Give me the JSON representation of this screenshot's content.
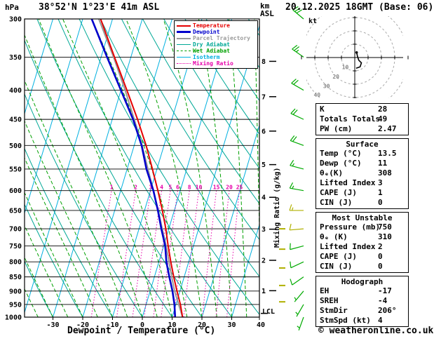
{
  "header": {
    "station": "38°52'N 1°23'E 41m ASL",
    "datetime": "20.12.2025 18GMT (Base: 06)"
  },
  "labels": {
    "hpa": "hPa",
    "km": "km",
    "asl": "ASL",
    "kt": "kt",
    "lcl": "LCL",
    "xlabel": "Dewpoint / Temperature (°C)",
    "mixing_axis": "Mixing Ratio (g/kg)"
  },
  "footer": {
    "copyright": "© weatheronline.co.uk"
  },
  "colors": {
    "wind_barb": "#00aa00",
    "aux_marker": "#b0b000",
    "grid": "#000000",
    "hodograph_ring": "#aaaaaa",
    "hodograph_label": "#888888",
    "hodograph_trace": "#000000"
  },
  "legend": [
    {
      "label": "Temperature",
      "color": "#e60000",
      "style": "solid",
      "width": 2
    },
    {
      "label": "Dewpoint",
      "color": "#0000cc",
      "style": "solid",
      "width": 3
    },
    {
      "label": "Parcel Trajectory",
      "color": "#999999",
      "style": "solid",
      "width": 2
    },
    {
      "label": "Dry Adiabat",
      "color": "#00a896",
      "style": "solid",
      "width": 1
    },
    {
      "label": "Wet Adiabat",
      "color": "#00a000",
      "style": "dashed",
      "width": 1
    },
    {
      "label": "Isotherm",
      "color": "#00b0e0",
      "style": "solid",
      "width": 1
    },
    {
      "label": "Mixing Ratio",
      "color": "#e600aa",
      "style": "dotted",
      "width": 1
    }
  ],
  "axes": {
    "pressure_ticks": [
      300,
      350,
      400,
      450,
      500,
      550,
      600,
      650,
      700,
      750,
      800,
      850,
      900,
      950,
      1000
    ],
    "temp_ticks": [
      -30,
      -20,
      -10,
      0,
      10,
      20,
      30,
      40
    ],
    "km_ticks": [
      1,
      2,
      3,
      4,
      5,
      6,
      7,
      8
    ],
    "mixing_ratio_labels": [
      1,
      2,
      3,
      4,
      5,
      6,
      8,
      10,
      15,
      20,
      25
    ],
    "hodograph_rings": [
      10,
      20,
      30,
      40
    ]
  },
  "chart_data": {
    "type": "line",
    "title": "Skew-T log-P sounding, 38°52'N 1°23'E 41m ASL, 20.12.2025 18GMT (Base: 06)",
    "xlabel": "Dewpoint / Temperature (°C)",
    "ylabel": "hPa",
    "ylim": [
      1000,
      300
    ],
    "x_pressure_hpa": [
      1000,
      950,
      900,
      850,
      800,
      750,
      700,
      650,
      600,
      550,
      500,
      450,
      400,
      350,
      300
    ],
    "series": [
      {
        "name": "Temperature",
        "color": "#e60000",
        "values": [
          13.5,
          11.5,
          9,
          6.5,
          4,
          1.5,
          -1,
          -4,
          -7.5,
          -11.5,
          -16,
          -21.5,
          -28,
          -35.5,
          -44
        ]
      },
      {
        "name": "Dewpoint",
        "color": "#0000cc",
        "values": [
          11,
          9.5,
          7.5,
          5,
          2.5,
          0.5,
          -2.5,
          -5.5,
          -9,
          -13.5,
          -17.5,
          -23,
          -30,
          -38,
          -47
        ]
      },
      {
        "name": "Parcel Trajectory",
        "color": "#999999",
        "values": [
          13.5,
          10.9,
          8.2,
          5.8,
          3.4,
          0.8,
          -2.2,
          -5.4,
          -9,
          -13,
          -17.4,
          -22.6,
          -28.6,
          -35.8,
          -44.6
        ]
      }
    ],
    "lcl_pressure_hpa": 985,
    "isotherms_c": {
      "min": -120,
      "max": 40,
      "step": 10
    },
    "dry_adiabats_c": {
      "min": -40,
      "max": 160,
      "step": 10
    },
    "wet_adiabats_c": {
      "min": -40,
      "max": 40,
      "step": 5
    },
    "mixing_ratio_top_hpa": 600,
    "aux_marker_pressures": [
      700,
      760,
      820,
      880,
      940
    ]
  },
  "wind_barbs": [
    {
      "p": 1000,
      "dir": 200,
      "spd": 4
    },
    {
      "p": 950,
      "dir": 210,
      "spd": 5
    },
    {
      "p": 900,
      "dir": 220,
      "spd": 5
    },
    {
      "p": 850,
      "dir": 235,
      "spd": 8
    },
    {
      "p": 800,
      "dir": 245,
      "spd": 10
    },
    {
      "p": 750,
      "dir": 255,
      "spd": 10
    },
    {
      "p": 700,
      "dir": 265,
      "spd": 12,
      "color": "#b0b000"
    },
    {
      "p": 650,
      "dir": 270,
      "spd": 15,
      "color": "#b0b000"
    },
    {
      "p": 600,
      "dir": 280,
      "spd": 15
    },
    {
      "p": 550,
      "dir": 285,
      "spd": 15
    },
    {
      "p": 500,
      "dir": 290,
      "spd": 18
    },
    {
      "p": 450,
      "dir": 295,
      "spd": 20
    },
    {
      "p": 400,
      "dir": 300,
      "spd": 22
    },
    {
      "p": 350,
      "dir": 305,
      "spd": 25
    },
    {
      "p": 300,
      "dir": 310,
      "spd": 28
    }
  ],
  "hodograph": {
    "ring_step_kt": 10,
    "trace_uv_kt": [
      [
        1.4,
        3.8
      ],
      [
        2,
        1
      ],
      [
        3,
        -2
      ],
      [
        5,
        -4
      ],
      [
        4,
        -7
      ],
      [
        1,
        -8
      ]
    ],
    "storm_dir_deg": 206,
    "storm_spd_kt": 4
  },
  "table": {
    "sections": [
      {
        "header": null,
        "rows": [
          [
            "K",
            "28"
          ],
          [
            "Totals Totals",
            "49"
          ],
          [
            "PW (cm)",
            "2.47"
          ]
        ]
      },
      {
        "header": "Surface",
        "rows": [
          [
            "Temp (°C)",
            "13.5"
          ],
          [
            "Dewp (°C)",
            "11"
          ],
          [
            "θₑ(K)",
            "308"
          ],
          [
            "Lifted Index",
            "3"
          ],
          [
            "CAPE (J)",
            "1"
          ],
          [
            "CIN (J)",
            "0"
          ]
        ]
      },
      {
        "header": "Most Unstable",
        "rows": [
          [
            "Pressure (mb)",
            "750"
          ],
          [
            "θₑ (K)",
            "310"
          ],
          [
            "Lifted Index",
            "2"
          ],
          [
            "CAPE (J)",
            "0"
          ],
          [
            "CIN (J)",
            "0"
          ]
        ]
      },
      {
        "header": "Hodograph",
        "rows": [
          [
            "EH",
            "-17"
          ],
          [
            "SREH",
            "-4"
          ],
          [
            "StmDir",
            "206°"
          ],
          [
            "StmSpd (kt)",
            "4"
          ]
        ]
      }
    ]
  }
}
